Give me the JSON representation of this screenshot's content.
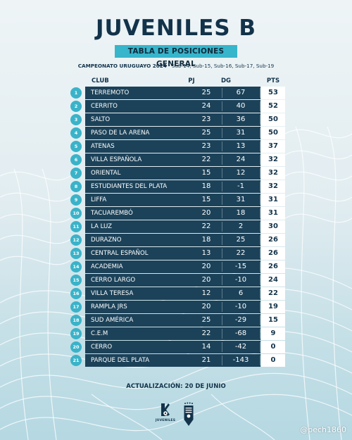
{
  "header": {
    "title": "JUVENILES B",
    "subtitle": "TABLA DE POSICIONES GENERAL",
    "championship_bold": "CAMPEONATO URUGUAYO 2024",
    "championship_rest": " - Sub-14, Sub-15, Sub-16, Sub-17, Sub-19"
  },
  "columns": {
    "club": "CLUB",
    "pj": "PJ",
    "dg": "DG",
    "pts": "PTS"
  },
  "rows": [
    {
      "rank": "1",
      "club": "TERREMOTO",
      "pj": "25",
      "dg": "67",
      "pts": "53"
    },
    {
      "rank": "2",
      "club": "CERRITO",
      "pj": "24",
      "dg": "40",
      "pts": "52"
    },
    {
      "rank": "3",
      "club": "SALTO",
      "pj": "23",
      "dg": "36",
      "pts": "50"
    },
    {
      "rank": "4",
      "club": "PASO DE LA ARENA",
      "pj": "25",
      "dg": "31",
      "pts": "50"
    },
    {
      "rank": "5",
      "club": "ATENAS",
      "pj": "23",
      "dg": "13",
      "pts": "37"
    },
    {
      "rank": "6",
      "club": "VILLA ESPAÑOLA",
      "pj": "22",
      "dg": "24",
      "pts": "32"
    },
    {
      "rank": "7",
      "club": "ORIENTAL",
      "pj": "15",
      "dg": "12",
      "pts": "32"
    },
    {
      "rank": "8",
      "club": "ESTUDIANTES DEL PLATA",
      "pj": "18",
      "dg": "-1",
      "pts": "32"
    },
    {
      "rank": "9",
      "club": "LIFFA",
      "pj": "15",
      "dg": "31",
      "pts": "31"
    },
    {
      "rank": "10",
      "club": "TACUAREMBÓ",
      "pj": "20",
      "dg": "18",
      "pts": "31"
    },
    {
      "rank": "11",
      "club": "LA LUZ",
      "pj": "22",
      "dg": "2",
      "pts": "30"
    },
    {
      "rank": "12",
      "club": "DURAZNO",
      "pj": "18",
      "dg": "25",
      "pts": "26"
    },
    {
      "rank": "13",
      "club": "CENTRAL ESPAÑOL",
      "pj": "13",
      "dg": "22",
      "pts": "26"
    },
    {
      "rank": "14",
      "club": "ACADEMIA",
      "pj": "20",
      "dg": "-15",
      "pts": "26"
    },
    {
      "rank": "15",
      "club": "CERRO LARGO",
      "pj": "20",
      "dg": "-10",
      "pts": "24"
    },
    {
      "rank": "16",
      "club": "VILLA TERESA",
      "pj": "12",
      "dg": "6",
      "pts": "22"
    },
    {
      "rank": "17",
      "club": "RAMPLA JRS",
      "pj": "20",
      "dg": "-10",
      "pts": "19"
    },
    {
      "rank": "18",
      "club": "SUD AMÉRICA",
      "pj": "25",
      "dg": "-29",
      "pts": "15"
    },
    {
      "rank": "19",
      "club": "C.E.M",
      "pj": "22",
      "dg": "-68",
      "pts": "9"
    },
    {
      "rank": "20",
      "club": "CERRO",
      "pj": "14",
      "dg": "-42",
      "pts": "0"
    },
    {
      "rank": "21",
      "club": "PARQUE DEL PLATA",
      "pj": "21",
      "dg": "-143",
      "pts": "0"
    }
  ],
  "footer": {
    "update": "ACTUALIZACIÓN: 20 DE JUNIO",
    "logo_label": "JUVENILES",
    "watermark": "@pech1860"
  },
  "colors": {
    "dark_navy": "#1c4259",
    "accent_teal": "#36b5cb",
    "text_dark": "#12334a"
  },
  "icons": [
    "soccer-net-background",
    "auf-juveniles-logo",
    "auf-shield-logo"
  ]
}
